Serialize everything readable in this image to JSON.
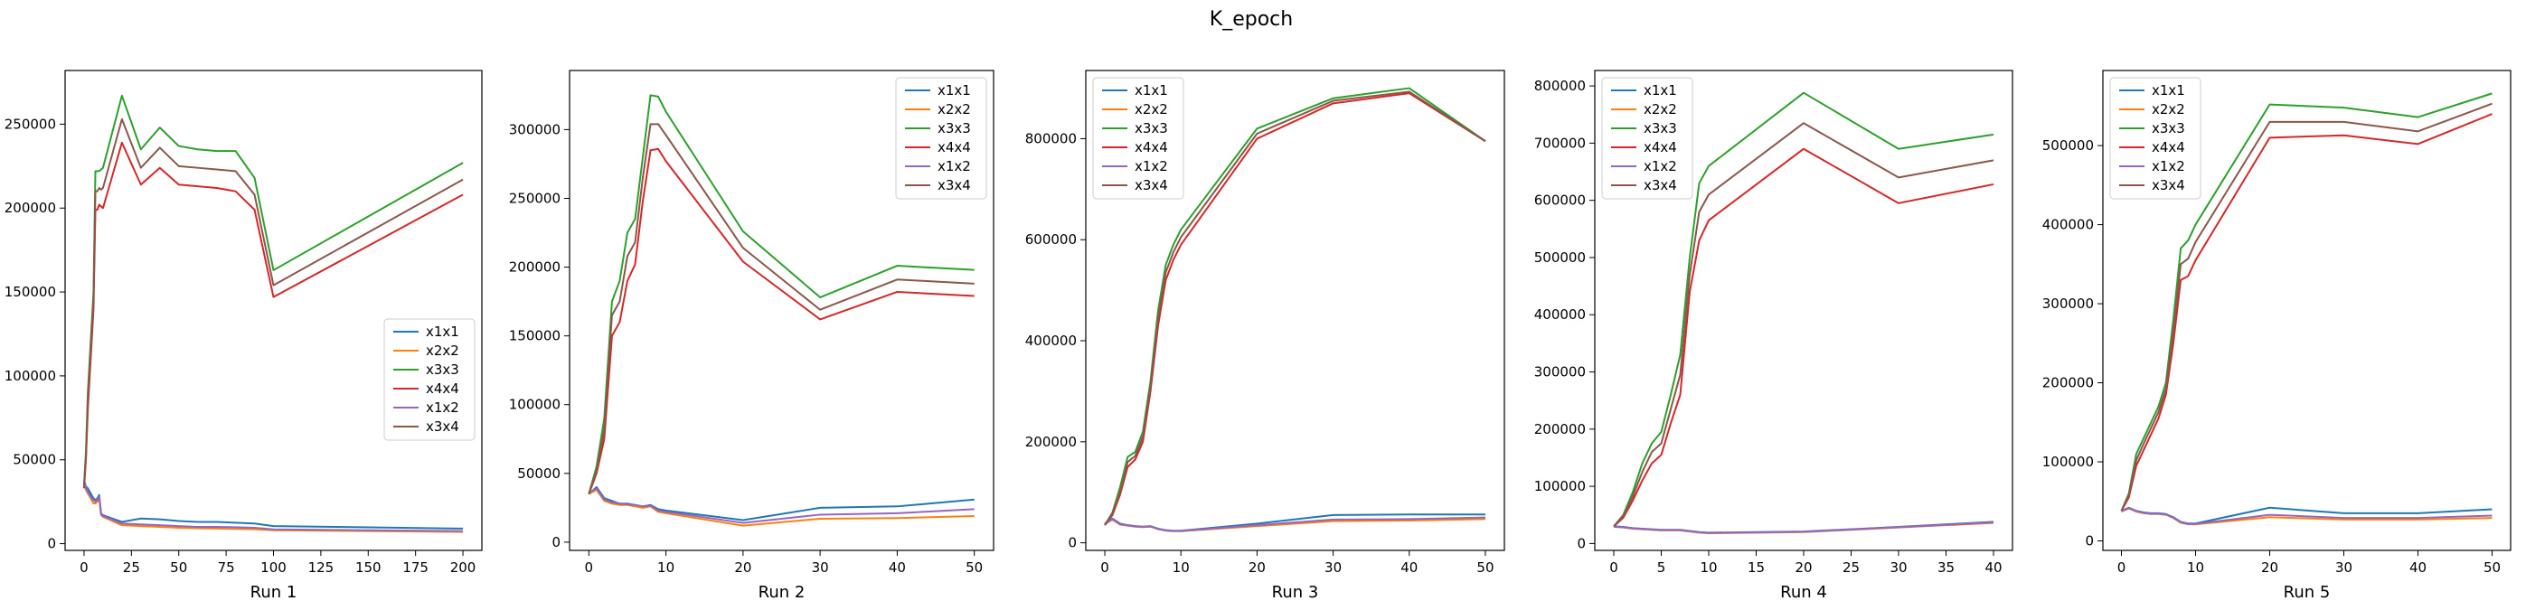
{
  "suptitle": "K_epoch",
  "colors": {
    "x1x1": "#1f77b4",
    "x2x2": "#ff7f0e",
    "x3x3": "#2ca02c",
    "x4x4": "#d62728",
    "x1x2": "#9467bd",
    "x3x4": "#8c564b"
  },
  "chart_data": [
    {
      "type": "line",
      "xlabel": "Run 1",
      "ylabel": "",
      "xlim": [
        -10,
        210
      ],
      "ylim": [
        -4000,
        282000
      ],
      "xticks": [
        0,
        25,
        50,
        75,
        100,
        125,
        150,
        175,
        200
      ],
      "yticks": [
        0,
        50000,
        100000,
        150000,
        200000,
        250000
      ],
      "legend": "center-right",
      "x": [
        0,
        1,
        2,
        3,
        4,
        5,
        6,
        7,
        8,
        9,
        10,
        20,
        30,
        40,
        50,
        60,
        70,
        80,
        90,
        100,
        200
      ],
      "series": [
        {
          "name": "x1x1",
          "values": [
            38000,
            34000,
            33000,
            31000,
            29000,
            27000,
            26000,
            27000,
            29000,
            18000,
            17000,
            13000,
            15000,
            14500,
            13500,
            13000,
            13000,
            12500,
            12000,
            10500,
            9000
          ]
        },
        {
          "name": "x2x2",
          "values": [
            36000,
            32000,
            30000,
            28000,
            26000,
            24000,
            24000,
            25000,
            27000,
            17000,
            16000,
            11000,
            10500,
            10000,
            9500,
            9200,
            9000,
            8800,
            8600,
            8000,
            7000
          ]
        },
        {
          "name": "x3x3",
          "values": [
            35000,
            55000,
            90000,
            110000,
            130000,
            150000,
            222000,
            222000,
            222000,
            223000,
            224000,
            267000,
            235000,
            248000,
            237000,
            235000,
            234000,
            234000,
            218000,
            163000,
            227000
          ]
        },
        {
          "name": "x4x4",
          "values": [
            33000,
            50000,
            80000,
            100000,
            120000,
            140000,
            199000,
            199000,
            202000,
            201000,
            200000,
            239000,
            214000,
            224000,
            214000,
            213000,
            212000,
            210000,
            199000,
            147000,
            208000
          ]
        },
        {
          "name": "x1x2",
          "values": [
            37000,
            33000,
            31000,
            29000,
            27000,
            26000,
            25000,
            26000,
            28000,
            17500,
            16500,
            12000,
            11500,
            11000,
            10500,
            10000,
            10000,
            9800,
            9500,
            8500,
            7500
          ]
        },
        {
          "name": "x3x4",
          "values": [
            34000,
            52000,
            85000,
            105000,
            125000,
            145000,
            210000,
            210000,
            212000,
            211000,
            212000,
            253000,
            224000,
            236000,
            225000,
            224000,
            223000,
            222000,
            208000,
            154000,
            217000
          ]
        }
      ]
    },
    {
      "type": "line",
      "xlabel": "Run 2",
      "ylabel": "",
      "xlim": [
        -2.5,
        52.5
      ],
      "ylim": [
        -6000,
        343000
      ],
      "xticks": [
        0,
        10,
        20,
        30,
        40,
        50
      ],
      "yticks": [
        0,
        50000,
        100000,
        150000,
        200000,
        250000,
        300000
      ],
      "legend": "top-right",
      "x": [
        0,
        1,
        2,
        3,
        4,
        5,
        6,
        7,
        8,
        9,
        10,
        20,
        30,
        40,
        50
      ],
      "series": [
        {
          "name": "x1x1",
          "values": [
            35000,
            40000,
            32000,
            30000,
            28000,
            28000,
            27000,
            26000,
            27000,
            24000,
            23000,
            16000,
            25000,
            26000,
            31000
          ]
        },
        {
          "name": "x2x2",
          "values": [
            35000,
            38000,
            30000,
            28000,
            27000,
            27000,
            26000,
            25000,
            26000,
            22000,
            21000,
            12000,
            17000,
            17500,
            19000
          ]
        },
        {
          "name": "x3x3",
          "values": [
            35000,
            55000,
            90000,
            175000,
            190000,
            225000,
            235000,
            280000,
            325000,
            324000,
            313000,
            226000,
            178000,
            201000,
            198000
          ]
        },
        {
          "name": "x4x4",
          "values": [
            35000,
            50000,
            75000,
            150000,
            160000,
            190000,
            202000,
            248000,
            285000,
            286000,
            277000,
            204000,
            162000,
            182000,
            179000
          ]
        },
        {
          "name": "x1x2",
          "values": [
            36000,
            39000,
            31000,
            29000,
            28000,
            27500,
            27000,
            26000,
            26500,
            23000,
            22000,
            14000,
            20000,
            21000,
            24000
          ]
        },
        {
          "name": "x3x4",
          "values": [
            35000,
            52000,
            82000,
            165000,
            175000,
            208000,
            218000,
            265000,
            304000,
            304000,
            296000,
            214000,
            169000,
            191000,
            188000
          ]
        }
      ]
    },
    {
      "type": "line",
      "xlabel": "Run 3",
      "ylabel": "",
      "xlim": [
        -2.5,
        52.5
      ],
      "ylim": [
        -15000,
        935000
      ],
      "xticks": [
        0,
        10,
        20,
        30,
        40,
        50
      ],
      "yticks": [
        0,
        200000,
        400000,
        600000,
        800000
      ],
      "legend": "top-left",
      "x": [
        0,
        1,
        2,
        3,
        4,
        5,
        6,
        7,
        8,
        9,
        10,
        20,
        30,
        40,
        50
      ],
      "series": [
        {
          "name": "x1x1",
          "values": [
            38000,
            48000,
            38000,
            35000,
            33000,
            32000,
            33000,
            28000,
            25000,
            24000,
            24000,
            38000,
            55000,
            56000,
            56000
          ]
        },
        {
          "name": "x2x2",
          "values": [
            37000,
            46000,
            36000,
            34000,
            32000,
            31000,
            32000,
            27000,
            24000,
            23000,
            23000,
            33000,
            43000,
            44000,
            47000
          ]
        },
        {
          "name": "x3x3",
          "values": [
            35000,
            60000,
            110000,
            170000,
            180000,
            220000,
            320000,
            460000,
            550000,
            590000,
            620000,
            820000,
            880000,
            900000,
            795000
          ]
        },
        {
          "name": "x4x4",
          "values": [
            35000,
            55000,
            95000,
            150000,
            165000,
            200000,
            300000,
            430000,
            520000,
            560000,
            590000,
            800000,
            870000,
            890000,
            795000
          ]
        },
        {
          "name": "x1x2",
          "values": [
            37500,
            47000,
            37000,
            34500,
            32500,
            31500,
            32500,
            27500,
            24500,
            23500,
            23500,
            35000,
            46000,
            47000,
            50000
          ]
        },
        {
          "name": "x3x4",
          "values": [
            35000,
            58000,
            100000,
            160000,
            172000,
            210000,
            310000,
            445000,
            535000,
            575000,
            605000,
            810000,
            875000,
            893000,
            795000
          ]
        }
      ]
    },
    {
      "type": "line",
      "xlabel": "Run 4",
      "ylabel": "",
      "xlim": [
        -2,
        42
      ],
      "ylim": [
        -12000,
        827000
      ],
      "xticks": [
        0,
        5,
        10,
        15,
        20,
        25,
        30,
        35,
        40
      ],
      "yticks": [
        0,
        100000,
        200000,
        300000,
        400000,
        500000,
        600000,
        700000,
        800000
      ],
      "legend": "top-left",
      "x": [
        0,
        1,
        2,
        3,
        4,
        5,
        6,
        7,
        8,
        9,
        10,
        20,
        30,
        40
      ],
      "series": [
        {
          "name": "x1x1",
          "values": [
            30000,
            29000,
            27000,
            26000,
            25000,
            24000,
            24000,
            24000,
            22000,
            20000,
            19000,
            21000,
            29000,
            38000
          ]
        },
        {
          "name": "x2x2",
          "values": [
            29000,
            28000,
            26000,
            25000,
            24000,
            23000,
            23000,
            23000,
            21000,
            19000,
            18000,
            20000,
            28000,
            36000
          ]
        },
        {
          "name": "x3x3",
          "values": [
            30000,
            50000,
            90000,
            140000,
            175000,
            195000,
            260000,
            330000,
            500000,
            630000,
            660000,
            788000,
            690000,
            715000
          ]
        },
        {
          "name": "x4x4",
          "values": [
            30000,
            45000,
            75000,
            110000,
            140000,
            155000,
            210000,
            260000,
            440000,
            530000,
            565000,
            690000,
            595000,
            628000
          ]
        },
        {
          "name": "x1x2",
          "values": [
            29500,
            28500,
            26500,
            25500,
            24500,
            23500,
            23500,
            23500,
            21500,
            19500,
            18500,
            20500,
            28500,
            37000
          ]
        },
        {
          "name": "x3x4",
          "values": [
            30000,
            48000,
            82000,
            125000,
            160000,
            175000,
            235000,
            295000,
            470000,
            580000,
            610000,
            735000,
            640000,
            670000
          ]
        }
      ]
    },
    {
      "type": "line",
      "xlabel": "Run 5",
      "ylabel": "",
      "xlim": [
        -2.5,
        52.5
      ],
      "ylim": [
        -12000,
        595000
      ],
      "xticks": [
        0,
        10,
        20,
        30,
        40,
        50
      ],
      "yticks": [
        0,
        100000,
        200000,
        300000,
        400000,
        500000
      ],
      "legend": "top-left",
      "x": [
        0,
        1,
        2,
        3,
        4,
        5,
        6,
        7,
        8,
        9,
        10,
        20,
        30,
        40,
        50
      ],
      "series": [
        {
          "name": "x1x1",
          "values": [
            38000,
            42000,
            38000,
            36000,
            35000,
            35000,
            34000,
            30000,
            24000,
            22000,
            22000,
            42000,
            35000,
            35000,
            40000
          ]
        },
        {
          "name": "x2x2",
          "values": [
            37000,
            41000,
            37000,
            35000,
            34000,
            34000,
            33000,
            29000,
            23000,
            21000,
            21000,
            30000,
            27000,
            27000,
            29000
          ]
        },
        {
          "name": "x3x3",
          "values": [
            38000,
            60000,
            110000,
            130000,
            150000,
            170000,
            200000,
            280000,
            370000,
            380000,
            400000,
            552000,
            548000,
            536000,
            566000
          ]
        },
        {
          "name": "x4x4",
          "values": [
            38000,
            55000,
            95000,
            115000,
            135000,
            155000,
            185000,
            250000,
            330000,
            335000,
            355000,
            510000,
            513000,
            502000,
            540000
          ]
        },
        {
          "name": "x1x2",
          "values": [
            37500,
            41500,
            37500,
            35500,
            34500,
            34500,
            33500,
            29500,
            23500,
            21500,
            21500,
            33000,
            29000,
            29000,
            32000
          ]
        },
        {
          "name": "x3x4",
          "values": [
            38000,
            58000,
            102000,
            123000,
            143000,
            163000,
            192000,
            265000,
            350000,
            357000,
            378000,
            530000,
            530000,
            518000,
            553000
          ]
        }
      ]
    }
  ]
}
